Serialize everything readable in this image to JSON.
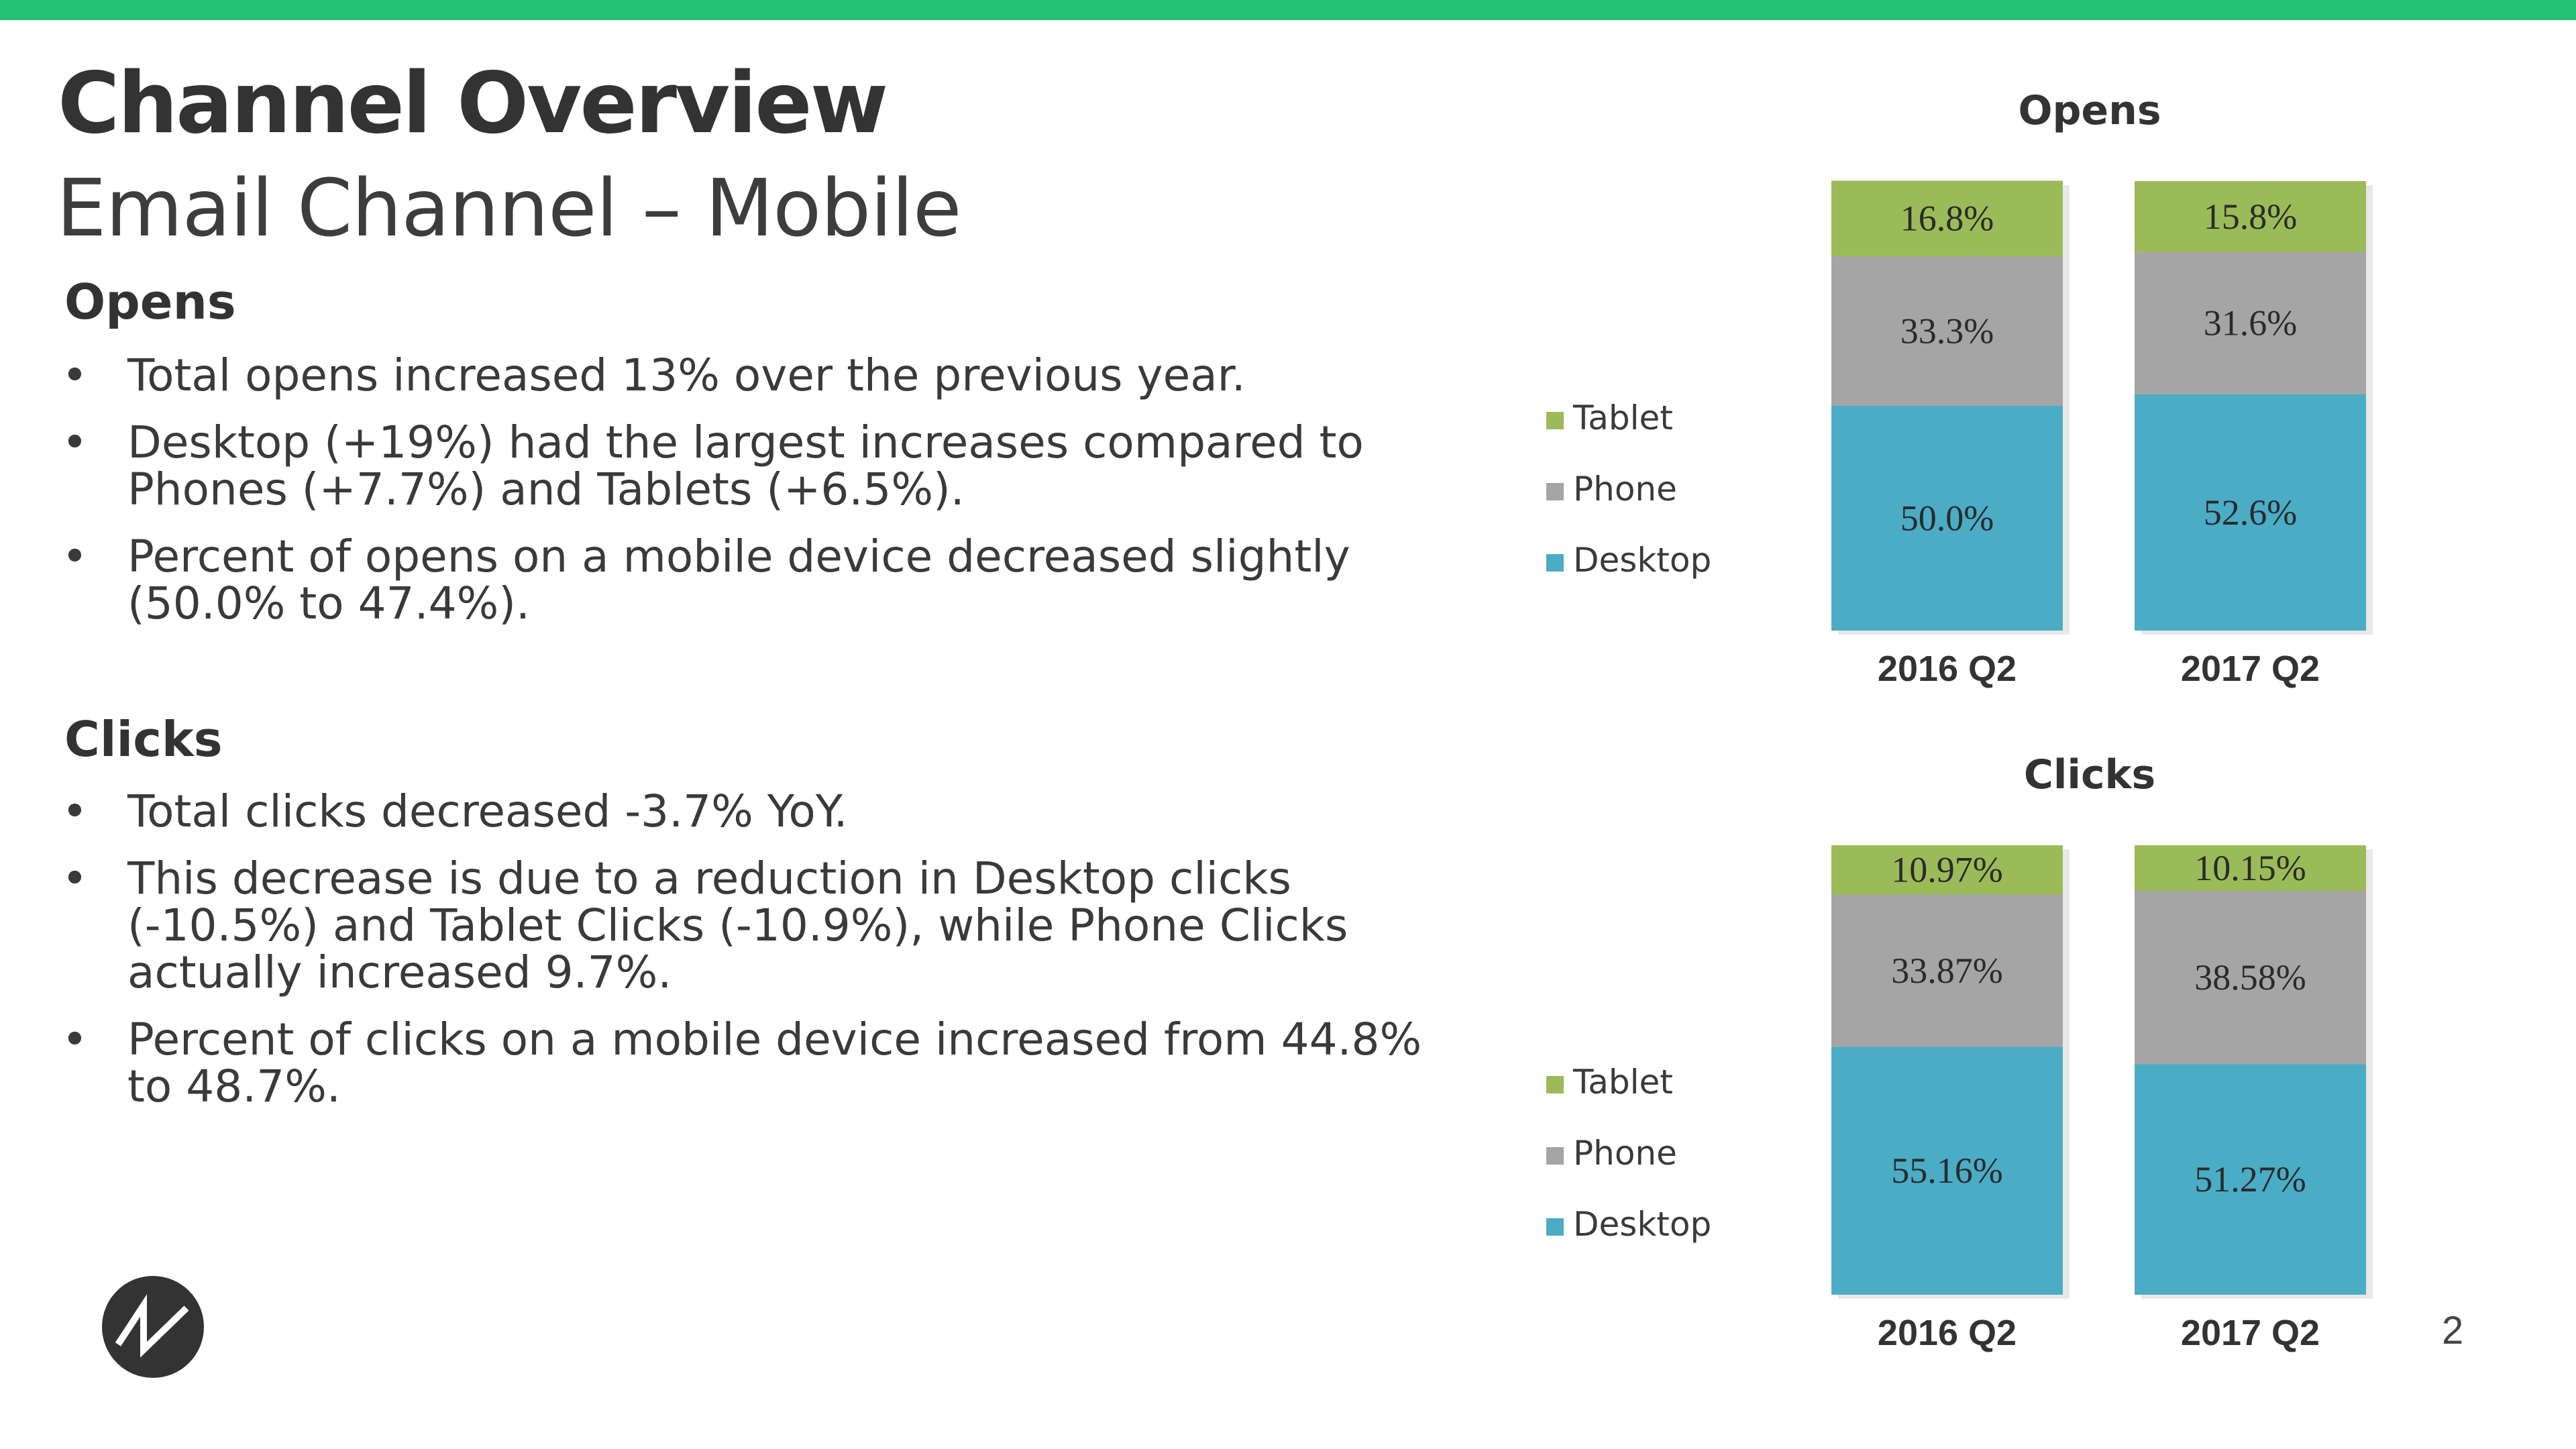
{
  "title": "Channel Overview",
  "subtitle": "Email Channel – Mobile",
  "page_number": "2",
  "colors": {
    "top_bar": "#22c174",
    "desktop": "#4bacc6",
    "phone": "#a5a5a5",
    "tablet": "#9bbb59"
  },
  "opens_section": {
    "heading": "Opens",
    "bullets": [
      "Total opens increased 13% over the previous year.",
      "Desktop (+19%) had the largest increases compared to Phones (+7.7%) and Tablets (+6.5%).",
      "Percent of opens on a mobile device decreased slightly (50.0% to 47.4%)."
    ]
  },
  "clicks_section": {
    "heading": "Clicks",
    "bullets": [
      "Total clicks decreased -3.7% YoY.",
      "This decrease is due to a reduction in Desktop clicks (-10.5%) and Tablet Clicks (-10.9%), while Phone Clicks actually increased 9.7%.",
      "Percent of clicks on a mobile device increased from 44.8% to 48.7%."
    ]
  },
  "chart_data": [
    {
      "type": "bar",
      "stacked": true,
      "percent_stacked": true,
      "title": "Opens",
      "categories": [
        "2016 Q2",
        "2017 Q2"
      ],
      "series": [
        {
          "name": "Desktop",
          "values": [
            50.0,
            52.6
          ],
          "labels": [
            "50.0%",
            "52.6%"
          ],
          "color": "#4bacc6"
        },
        {
          "name": "Phone",
          "values": [
            33.3,
            31.6
          ],
          "labels": [
            "33.3%",
            "31.6%"
          ],
          "color": "#a5a5a5"
        },
        {
          "name": "Tablet",
          "values": [
            16.8,
            15.8
          ],
          "labels": [
            "16.8%",
            "15.8%"
          ],
          "color": "#9bbb59"
        }
      ],
      "legend": [
        "Tablet",
        "Phone",
        "Desktop"
      ],
      "legend_position": "left",
      "ylim": [
        0,
        100
      ],
      "grid": false
    },
    {
      "type": "bar",
      "stacked": true,
      "percent_stacked": true,
      "title": "Clicks",
      "categories": [
        "2016 Q2",
        "2017 Q2"
      ],
      "series": [
        {
          "name": "Desktop",
          "values": [
            55.16,
            51.27
          ],
          "labels": [
            "55.16%",
            "51.27%"
          ],
          "color": "#4bacc6"
        },
        {
          "name": "Phone",
          "values": [
            33.87,
            38.58
          ],
          "labels": [
            "33.87%",
            "38.58%"
          ],
          "color": "#a5a5a5"
        },
        {
          "name": "Tablet",
          "values": [
            10.97,
            10.15
          ],
          "labels": [
            "10.97%",
            "10.15%"
          ],
          "color": "#9bbb59"
        }
      ],
      "legend": [
        "Tablet",
        "Phone",
        "Desktop"
      ],
      "legend_position": "left",
      "ylim": [
        0,
        100
      ],
      "grid": false
    }
  ]
}
